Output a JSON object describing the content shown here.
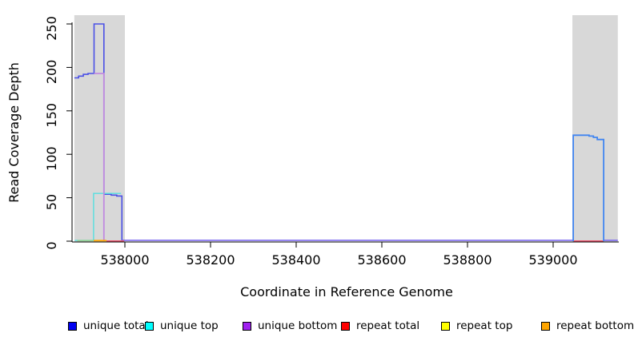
{
  "chart_data": {
    "type": "line",
    "title": "",
    "xlabel": "Coordinate in Reference Genome",
    "ylabel": "Read Coverage Depth",
    "xticks": [
      "538000",
      "538200",
      "538400",
      "538600",
      "538800",
      "539000"
    ],
    "yticks": [
      "0",
      "50",
      "100",
      "150",
      "200",
      "250"
    ],
    "xlim": [
      537882,
      539151
    ],
    "ylim": [
      0,
      260
    ],
    "grid": false,
    "highlight_regions": [
      {
        "name": "left-repeat-region",
        "x0": 537882,
        "x1": 538000,
        "color": "#d8d8d8"
      },
      {
        "name": "right-repeat-region",
        "x0": 539045,
        "x1": 539151,
        "color": "#d8d8d8"
      }
    ],
    "segments": [
      {
        "series": "unique total (left)",
        "color": "#4a50e6",
        "width": 1.6,
        "points": [
          [
            537882,
            188
          ],
          [
            537892,
            188
          ],
          [
            537892,
            190
          ],
          [
            537903,
            190
          ],
          [
            537903,
            192
          ],
          [
            537914,
            192
          ],
          [
            537914,
            193
          ],
          [
            537928,
            193
          ],
          [
            537928,
            250
          ],
          [
            537951,
            250
          ],
          [
            537951,
            54
          ],
          [
            537968,
            54
          ],
          [
            537968,
            53
          ],
          [
            537981,
            53
          ],
          [
            537981,
            52
          ],
          [
            537993,
            52
          ],
          [
            537993,
            0
          ]
        ]
      },
      {
        "series": "unique top",
        "color": "#55dfe0",
        "width": 1.4,
        "points": [
          [
            537883,
            0.8
          ],
          [
            537927,
            0.8
          ],
          [
            537927,
            55
          ],
          [
            537991,
            55
          ]
        ]
      },
      {
        "series": "unique bottom (visible)",
        "color": "#c08ae0",
        "width": 1.8,
        "points": [
          [
            537928,
            193
          ],
          [
            537951,
            193
          ],
          [
            537951,
            0
          ]
        ]
      },
      {
        "series": "unique total+bottom baseline",
        "color": "#7b68ee",
        "width": 1.6,
        "points": [
          [
            537993,
            1
          ],
          [
            539046,
            1
          ]
        ]
      },
      {
        "series": "unique total+bottom baseline (right)",
        "color": "#7b68ee",
        "width": 1.6,
        "points": [
          [
            539118,
            1
          ],
          [
            539151,
            1
          ]
        ]
      },
      {
        "series": "repeat top baseline",
        "color": "#8fd08f",
        "width": 1.6,
        "points": [
          [
            537889,
            0.6
          ],
          [
            537926,
            0.6
          ]
        ]
      },
      {
        "series": "repeat bottom baseline",
        "color": "#ffa500",
        "width": 1.8,
        "points": [
          [
            537927,
            0.6
          ],
          [
            537957,
            0.6
          ]
        ]
      },
      {
        "series": "repeat total baseline (left)",
        "color": "#e8506a",
        "width": 1.5,
        "points": [
          [
            537957,
            0.3
          ],
          [
            537998,
            0.3
          ]
        ]
      },
      {
        "series": "repeat total baseline (right)",
        "color": "#e8506a",
        "width": 1.5,
        "points": [
          [
            539047,
            0.3
          ],
          [
            539118,
            0.3
          ]
        ]
      },
      {
        "series": "unique total (right)",
        "color": "#4185f0",
        "width": 1.8,
        "points": [
          [
            539047,
            0
          ],
          [
            539047,
            122
          ],
          [
            539084,
            122
          ],
          [
            539084,
            121
          ],
          [
            539094,
            121
          ],
          [
            539094,
            119.5
          ],
          [
            539103,
            119.5
          ],
          [
            539103,
            117
          ],
          [
            539118,
            117
          ],
          [
            539118,
            0
          ]
        ]
      }
    ],
    "legend": {
      "position": "bottom",
      "items": [
        {
          "label": "unique total",
          "color": "#0000f0"
        },
        {
          "label": "unique top",
          "color": "#00ffff"
        },
        {
          "label": "unique bottom",
          "color": "#a020f0"
        },
        {
          "label": "repeat total",
          "color": "#ff0000"
        },
        {
          "label": "repeat top",
          "color": "#ffff00"
        },
        {
          "label": "repeat bottom",
          "color": "#ffa500"
        }
      ]
    }
  }
}
